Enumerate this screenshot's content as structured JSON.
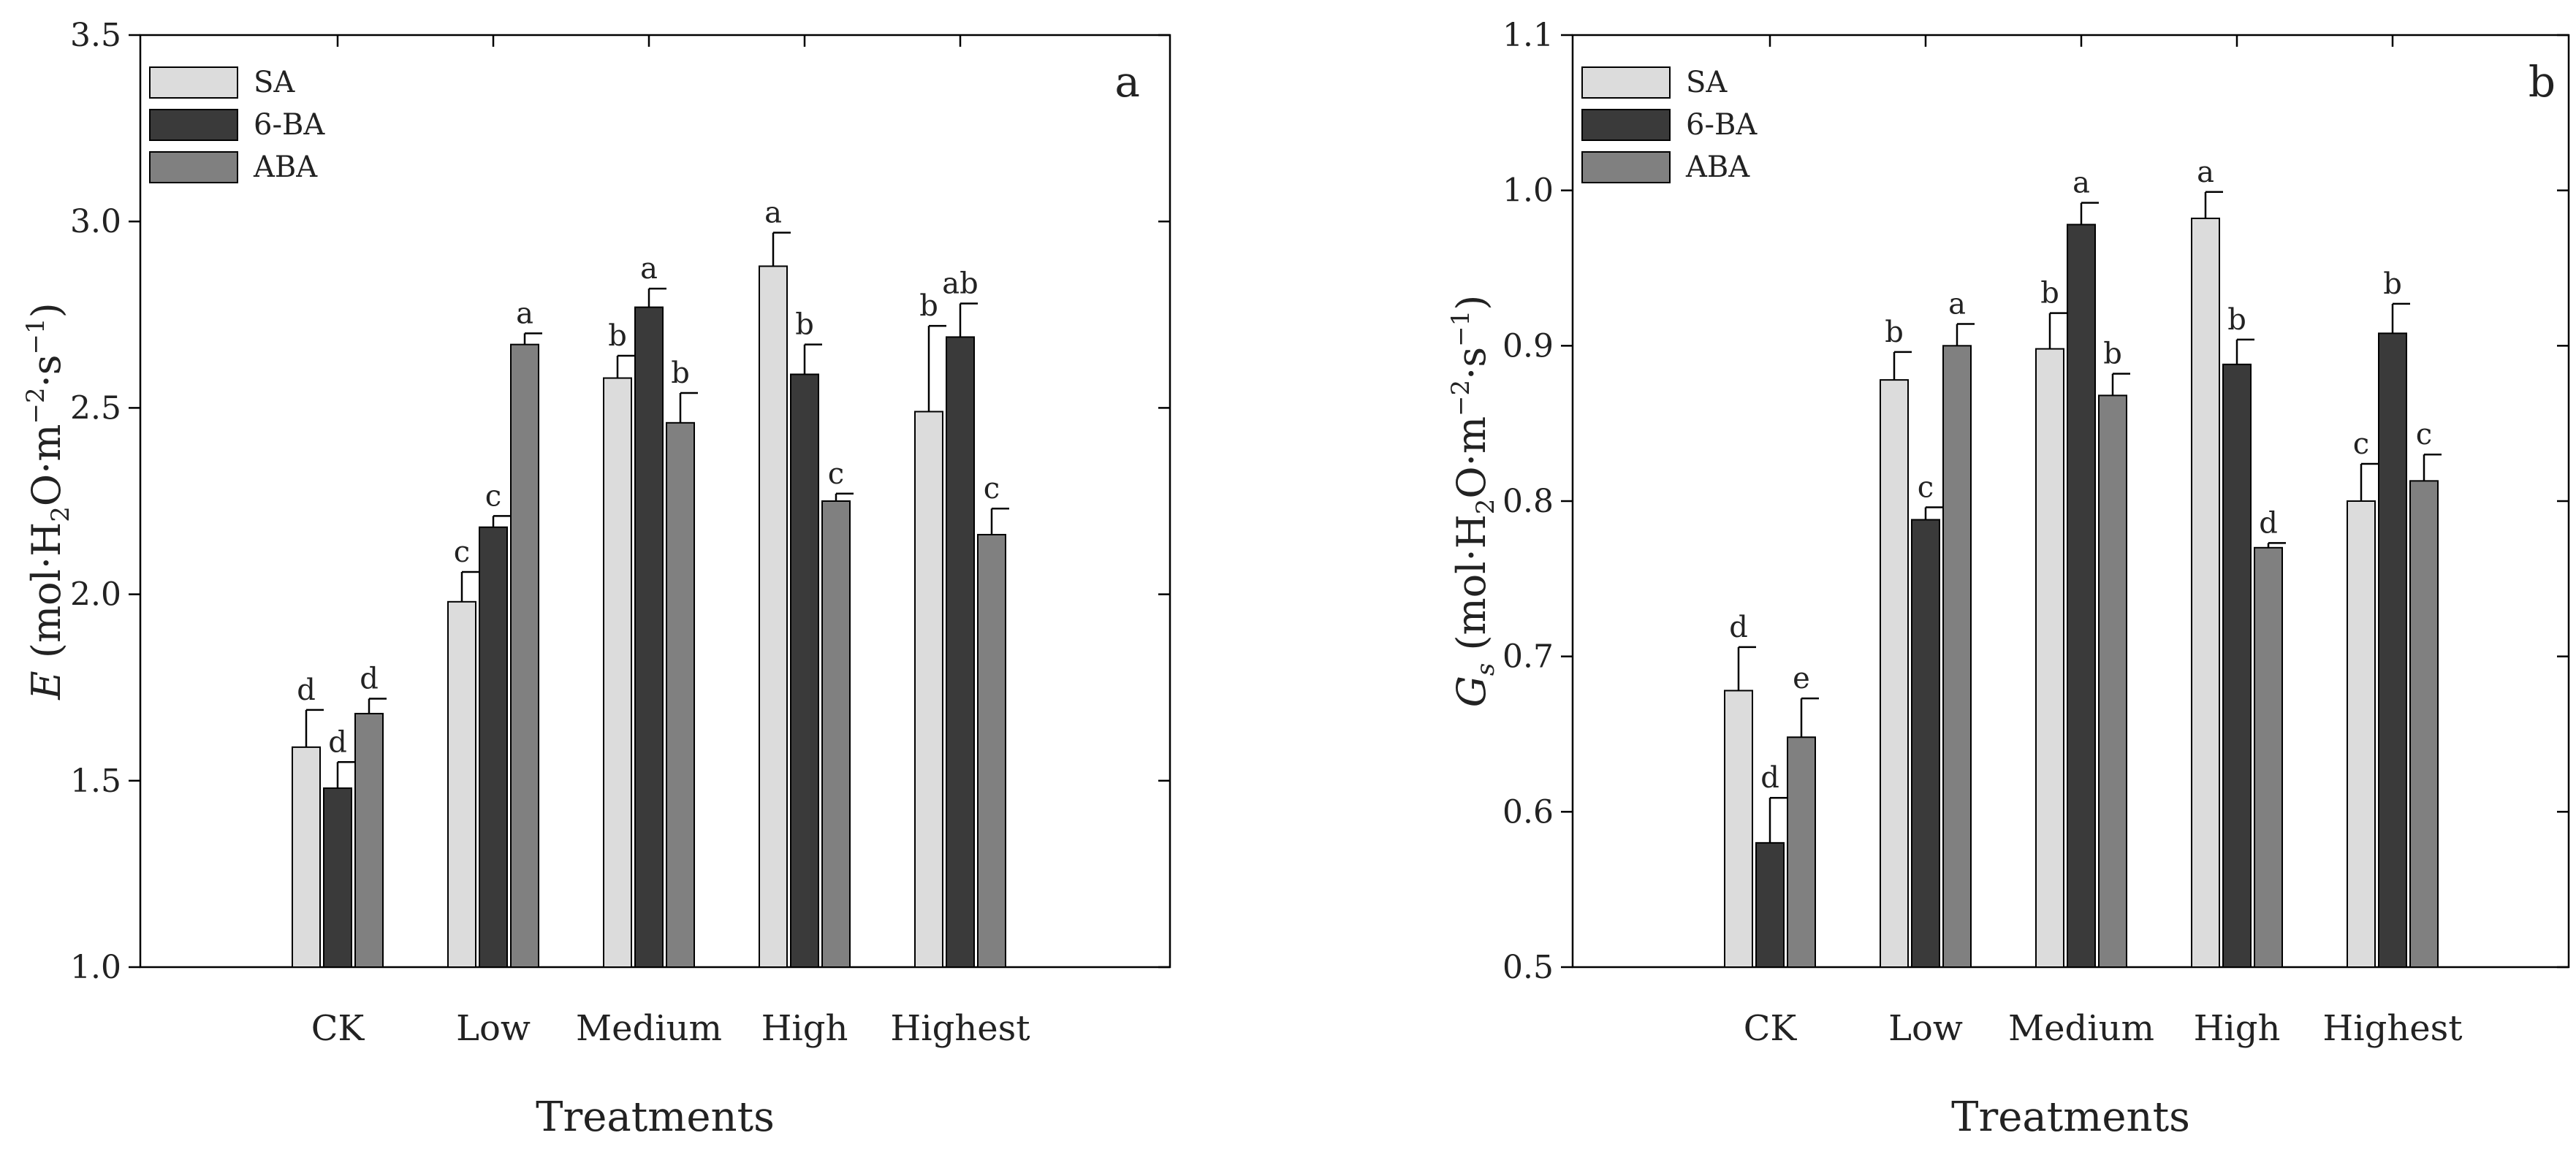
{
  "chart_data": [
    {
      "type": "bar",
      "panel_letter": "a",
      "categories": [
        "CK",
        "Low",
        "Medium",
        "High",
        "Highest"
      ],
      "series": [
        {
          "name": "SA",
          "color": "#dcdcdc",
          "values": [
            1.59,
            1.98,
            2.58,
            2.88,
            2.49
          ],
          "errors": [
            0.1,
            0.08,
            0.06,
            0.09,
            0.23
          ],
          "letters": [
            "d",
            "c",
            "b",
            "a",
            "b"
          ]
        },
        {
          "name": "6-BA",
          "color": "#3a3a3a",
          "values": [
            1.48,
            2.18,
            2.77,
            2.59,
            2.69
          ],
          "errors": [
            0.07,
            0.03,
            0.05,
            0.08,
            0.09
          ],
          "letters": [
            "d",
            "c",
            "a",
            "b",
            "ab"
          ]
        },
        {
          "name": "ABA",
          "color": "#808080",
          "values": [
            1.68,
            2.67,
            2.46,
            2.25,
            2.16
          ],
          "errors": [
            0.04,
            0.03,
            0.08,
            0.02,
            0.07
          ],
          "letters": [
            "d",
            "a",
            "b",
            "c",
            "c"
          ]
        }
      ],
      "xlabel": "Treatments",
      "ylabel": {
        "symbol": "E",
        "rest": " (mol·H",
        "sub": "2",
        "mid": "O·m",
        "sup1": "−2",
        "dot": "·s",
        "sup2": "−1",
        "close": ")"
      },
      "ylim": [
        1.0,
        3.5
      ],
      "yticks": [
        "1.0",
        "1.5",
        "2.0",
        "2.5",
        "3.0",
        "3.5"
      ],
      "legend_position": "top-left"
    },
    {
      "type": "bar",
      "panel_letter": "b",
      "categories": [
        "CK",
        "Low",
        "Medium",
        "High",
        "Highest"
      ],
      "series": [
        {
          "name": "SA",
          "color": "#dcdcdc",
          "values": [
            0.678,
            0.878,
            0.898,
            0.982,
            0.8
          ],
          "errors": [
            0.028,
            0.018,
            0.023,
            0.017,
            0.024
          ],
          "letters": [
            "d",
            "b",
            "b",
            "a",
            "c"
          ]
        },
        {
          "name": "6-BA",
          "color": "#3a3a3a",
          "values": [
            0.58,
            0.788,
            0.978,
            0.888,
            0.908
          ],
          "errors": [
            0.029,
            0.008,
            0.014,
            0.016,
            0.019
          ],
          "letters": [
            "d",
            "c",
            "a",
            "b",
            "b"
          ]
        },
        {
          "name": "ABA",
          "color": "#808080",
          "values": [
            0.648,
            0.9,
            0.868,
            0.77,
            0.813
          ],
          "errors": [
            0.025,
            0.014,
            0.014,
            0.003,
            0.017
          ],
          "letters": [
            "e",
            "a",
            "b",
            "d",
            "c"
          ]
        }
      ],
      "xlabel": "Treatments",
      "ylabel": {
        "symbol": "G",
        "symbol_sub": "s",
        "rest": " (mol·H",
        "sub": "2",
        "mid": "O·m",
        "sup1": "−2",
        "dot": "·s",
        "sup2": "−1",
        "close": ")"
      },
      "ylim": [
        0.5,
        1.1
      ],
      "yticks": [
        "0.5",
        "0.6",
        "0.7",
        "0.8",
        "0.9",
        "1.0",
        "1.1"
      ],
      "legend_position": "top-left"
    }
  ]
}
